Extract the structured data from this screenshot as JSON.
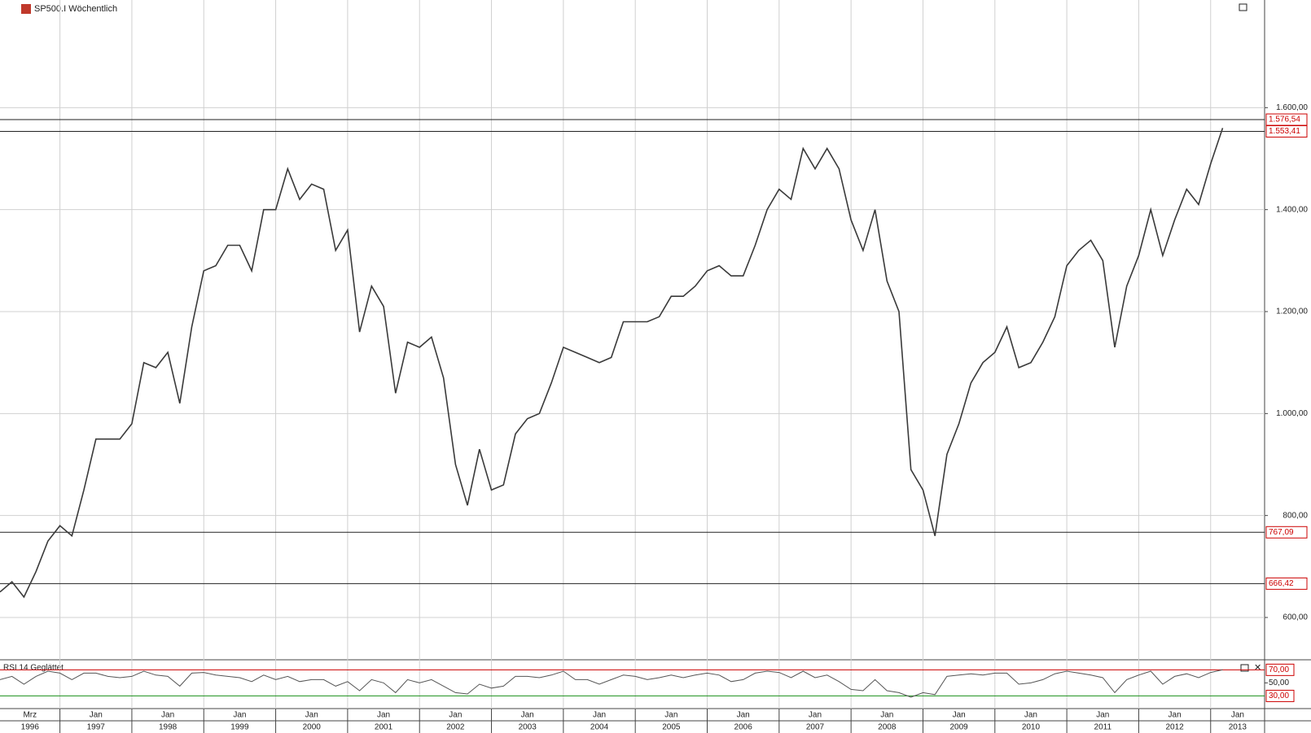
{
  "chart_data": [
    {
      "type": "line",
      "title": "SP500.I Wöchentlich",
      "x": [
        "1996-03",
        "1996-05",
        "1996-07",
        "1996-09",
        "1996-11",
        "1997-01",
        "1997-03",
        "1997-05",
        "1997-07",
        "1997-09",
        "1997-11",
        "1998-01",
        "1998-03",
        "1998-05",
        "1998-07",
        "1998-09",
        "1998-11",
        "1999-01",
        "1999-03",
        "1999-05",
        "1999-07",
        "1999-09",
        "1999-11",
        "2000-01",
        "2000-03",
        "2000-05",
        "2000-07",
        "2000-09",
        "2000-11",
        "2001-01",
        "2001-03",
        "2001-05",
        "2001-07",
        "2001-09",
        "2001-11",
        "2002-01",
        "2002-03",
        "2002-05",
        "2002-07",
        "2002-09",
        "2002-11",
        "2003-01",
        "2003-03",
        "2003-05",
        "2003-07",
        "2003-09",
        "2003-11",
        "2004-01",
        "2004-03",
        "2004-05",
        "2004-07",
        "2004-09",
        "2004-11",
        "2005-01",
        "2005-03",
        "2005-05",
        "2005-07",
        "2005-09",
        "2005-11",
        "2006-01",
        "2006-03",
        "2006-05",
        "2006-07",
        "2006-09",
        "2006-11",
        "2007-01",
        "2007-03",
        "2007-05",
        "2007-07",
        "2007-09",
        "2007-11",
        "2008-01",
        "2008-03",
        "2008-05",
        "2008-07",
        "2008-09",
        "2008-11",
        "2009-01",
        "2009-03",
        "2009-05",
        "2009-07",
        "2009-09",
        "2009-11",
        "2010-01",
        "2010-03",
        "2010-05",
        "2010-07",
        "2010-09",
        "2010-11",
        "2011-01",
        "2011-03",
        "2011-05",
        "2011-07",
        "2011-09",
        "2011-11",
        "2012-01",
        "2012-03",
        "2012-05",
        "2012-07",
        "2012-09",
        "2012-11",
        "2013-01",
        "2013-03"
      ],
      "series": [
        {
          "color": "#3a3a3a",
          "values": [
            650,
            670,
            640,
            690,
            750,
            780,
            760,
            850,
            950,
            950,
            950,
            980,
            1100,
            1090,
            1120,
            1020,
            1170,
            1280,
            1290,
            1330,
            1330,
            1280,
            1400,
            1400,
            1480,
            1420,
            1450,
            1440,
            1320,
            1360,
            1160,
            1250,
            1210,
            1040,
            1140,
            1130,
            1150,
            1070,
            900,
            820,
            930,
            850,
            860,
            960,
            990,
            1000,
            1060,
            1130,
            1120,
            1110,
            1100,
            1110,
            1180,
            1180,
            1180,
            1190,
            1230,
            1230,
            1250,
            1280,
            1290,
            1270,
            1270,
            1330,
            1400,
            1440,
            1420,
            1520,
            1480,
            1520,
            1480,
            1380,
            1320,
            1400,
            1260,
            1200,
            890,
            850,
            760,
            920,
            980,
            1060,
            1100,
            1120,
            1170,
            1090,
            1100,
            1140,
            1190,
            1290,
            1320,
            1340,
            1300,
            1130,
            1250,
            1310,
            1400,
            1310,
            1380,
            1440,
            1410,
            1490,
            1560
          ]
        }
      ],
      "xlim": [
        "1996-03",
        "2013-10"
      ],
      "xticks": [
        {
          "value": "1996-03",
          "label": "Mrz"
        },
        {
          "value": "1997-01",
          "label": "Jan"
        },
        {
          "value": "1998-01",
          "label": "Jan"
        },
        {
          "value": "1999-01",
          "label": "Jan"
        },
        {
          "value": "2000-01",
          "label": "Jan"
        },
        {
          "value": "2001-01",
          "label": "Jan"
        },
        {
          "value": "2002-01",
          "label": "Jan"
        },
        {
          "value": "2003-01",
          "label": "Jan"
        },
        {
          "value": "2004-01",
          "label": "Jan"
        },
        {
          "value": "2005-01",
          "label": "Jan"
        },
        {
          "value": "2006-01",
          "label": "Jan"
        },
        {
          "value": "2007-01",
          "label": "Jan"
        },
        {
          "value": "2008-01",
          "label": "Jan"
        },
        {
          "value": "2009-01",
          "label": "Jan"
        },
        {
          "value": "2010-01",
          "label": "Jan"
        },
        {
          "value": "2011-01",
          "label": "Jan"
        },
        {
          "value": "2012-01",
          "label": "Jan"
        },
        {
          "value": "2013-01",
          "label": "Jan"
        }
      ],
      "years": [
        "1996",
        "1997",
        "1998",
        "1999",
        "2000",
        "2001",
        "2002",
        "2003",
        "2004",
        "2005",
        "2006",
        "2007",
        "2008",
        "2009",
        "2010",
        "2011",
        "2012",
        "2013"
      ],
      "ylim": [
        517,
        1808
      ],
      "yticks": [
        {
          "value": 600,
          "label": "600,00"
        },
        {
          "value": 800,
          "label": "800,00"
        },
        {
          "value": 1000,
          "label": "1.000,00"
        },
        {
          "value": 1200,
          "label": "1.200,00"
        },
        {
          "value": 1400,
          "label": "1.400,00"
        },
        {
          "value": 1600,
          "label": "1.600,00"
        }
      ],
      "grid": true,
      "levels": [
        {
          "value": 1576.54,
          "label": "1.576,54"
        },
        {
          "value": 1553.41,
          "label": "1.553,41"
        },
        {
          "value": 767.09,
          "label": "767,09"
        },
        {
          "value": 666.42,
          "label": "666,42"
        }
      ]
    },
    {
      "type": "line",
      "title": "RSI 14 Geglättet",
      "series": [
        {
          "color": "#555555",
          "values": [
            55,
            60,
            48,
            60,
            68,
            65,
            55,
            65,
            65,
            60,
            58,
            60,
            68,
            62,
            60,
            45,
            65,
            66,
            62,
            60,
            58,
            52,
            62,
            55,
            60,
            52,
            55,
            55,
            45,
            52,
            38,
            55,
            50,
            35,
            55,
            50,
            55,
            45,
            35,
            33,
            48,
            42,
            45,
            60,
            60,
            58,
            62,
            68,
            55,
            55,
            48,
            55,
            62,
            60,
            55,
            58,
            62,
            58,
            62,
            65,
            62,
            52,
            55,
            65,
            68,
            66,
            58,
            68,
            58,
            62,
            52,
            40,
            38,
            55,
            38,
            35,
            28,
            35,
            32,
            60,
            62,
            64,
            62,
            65,
            65,
            48,
            50,
            55,
            64,
            68,
            65,
            62,
            58,
            35,
            55,
            62,
            68,
            48,
            60,
            64,
            58,
            66,
            70
          ]
        }
      ],
      "ylim": [
        10.6,
        82.9
      ],
      "yticks": [
        {
          "value": 70,
          "label": "70,00",
          "color": "#cc0000"
        },
        {
          "value": 50,
          "label": "50,00"
        },
        {
          "value": 30,
          "label": "30,00",
          "color": "#1a8f1a"
        }
      ]
    }
  ]
}
